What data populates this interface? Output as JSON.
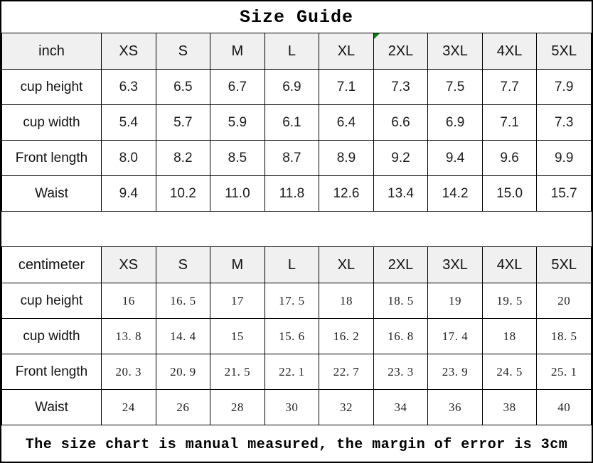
{
  "title": "Size Guide",
  "inch_table": {
    "unit": "inch",
    "sizes": [
      "XS",
      "S",
      "M",
      "L",
      "XL",
      "2XL",
      "3XL",
      "4XL",
      "5XL"
    ],
    "rows": [
      {
        "label": "cup height",
        "values": [
          "6.3",
          "6.5",
          "6.7",
          "6.9",
          "7.1",
          "7.3",
          "7.5",
          "7.7",
          "7.9"
        ]
      },
      {
        "label": "cup width",
        "values": [
          "5.4",
          "5.7",
          "5.9",
          "6.1",
          "6.4",
          "6.6",
          "6.9",
          "7.1",
          "7.3"
        ]
      },
      {
        "label": "Front length",
        "values": [
          "8.0",
          "8.2",
          "8.5",
          "8.7",
          "8.9",
          "9.2",
          "9.4",
          "9.6",
          "9.9"
        ]
      },
      {
        "label": "Waist",
        "values": [
          "9.4",
          "10.2",
          "11.0",
          "11.8",
          "12.6",
          "13.4",
          "14.2",
          "15.0",
          "15.7"
        ]
      }
    ]
  },
  "cm_table": {
    "unit": "centimeter",
    "sizes": [
      "XS",
      "S",
      "M",
      "L",
      "XL",
      "2XL",
      "3XL",
      "4XL",
      "5XL"
    ],
    "rows": [
      {
        "label": "cup height",
        "values": [
          "16",
          "16. 5",
          "17",
          "17. 5",
          "18",
          "18. 5",
          "19",
          "19. 5",
          "20"
        ]
      },
      {
        "label": "cup width",
        "values": [
          "13. 8",
          "14. 4",
          "15",
          "15. 6",
          "16. 2",
          "16. 8",
          "17. 4",
          "18",
          "18. 5"
        ]
      },
      {
        "label": "Front length",
        "values": [
          "20. 3",
          "20. 9",
          "21. 5",
          "22. 1",
          "22. 7",
          "23. 3",
          "23. 9",
          "24. 5",
          "25. 1"
        ]
      },
      {
        "label": "Waist",
        "values": [
          "24",
          "26",
          "28",
          "30",
          "32",
          "34",
          "36",
          "38",
          "40"
        ]
      }
    ]
  },
  "footer_note": "The size chart is manual measured, the margin of error is 3cm",
  "colors": {
    "header_bg": "#f0f0f0",
    "border": "#000000",
    "marker_green": "#0f7d0f",
    "text": "#1a1a1a"
  }
}
